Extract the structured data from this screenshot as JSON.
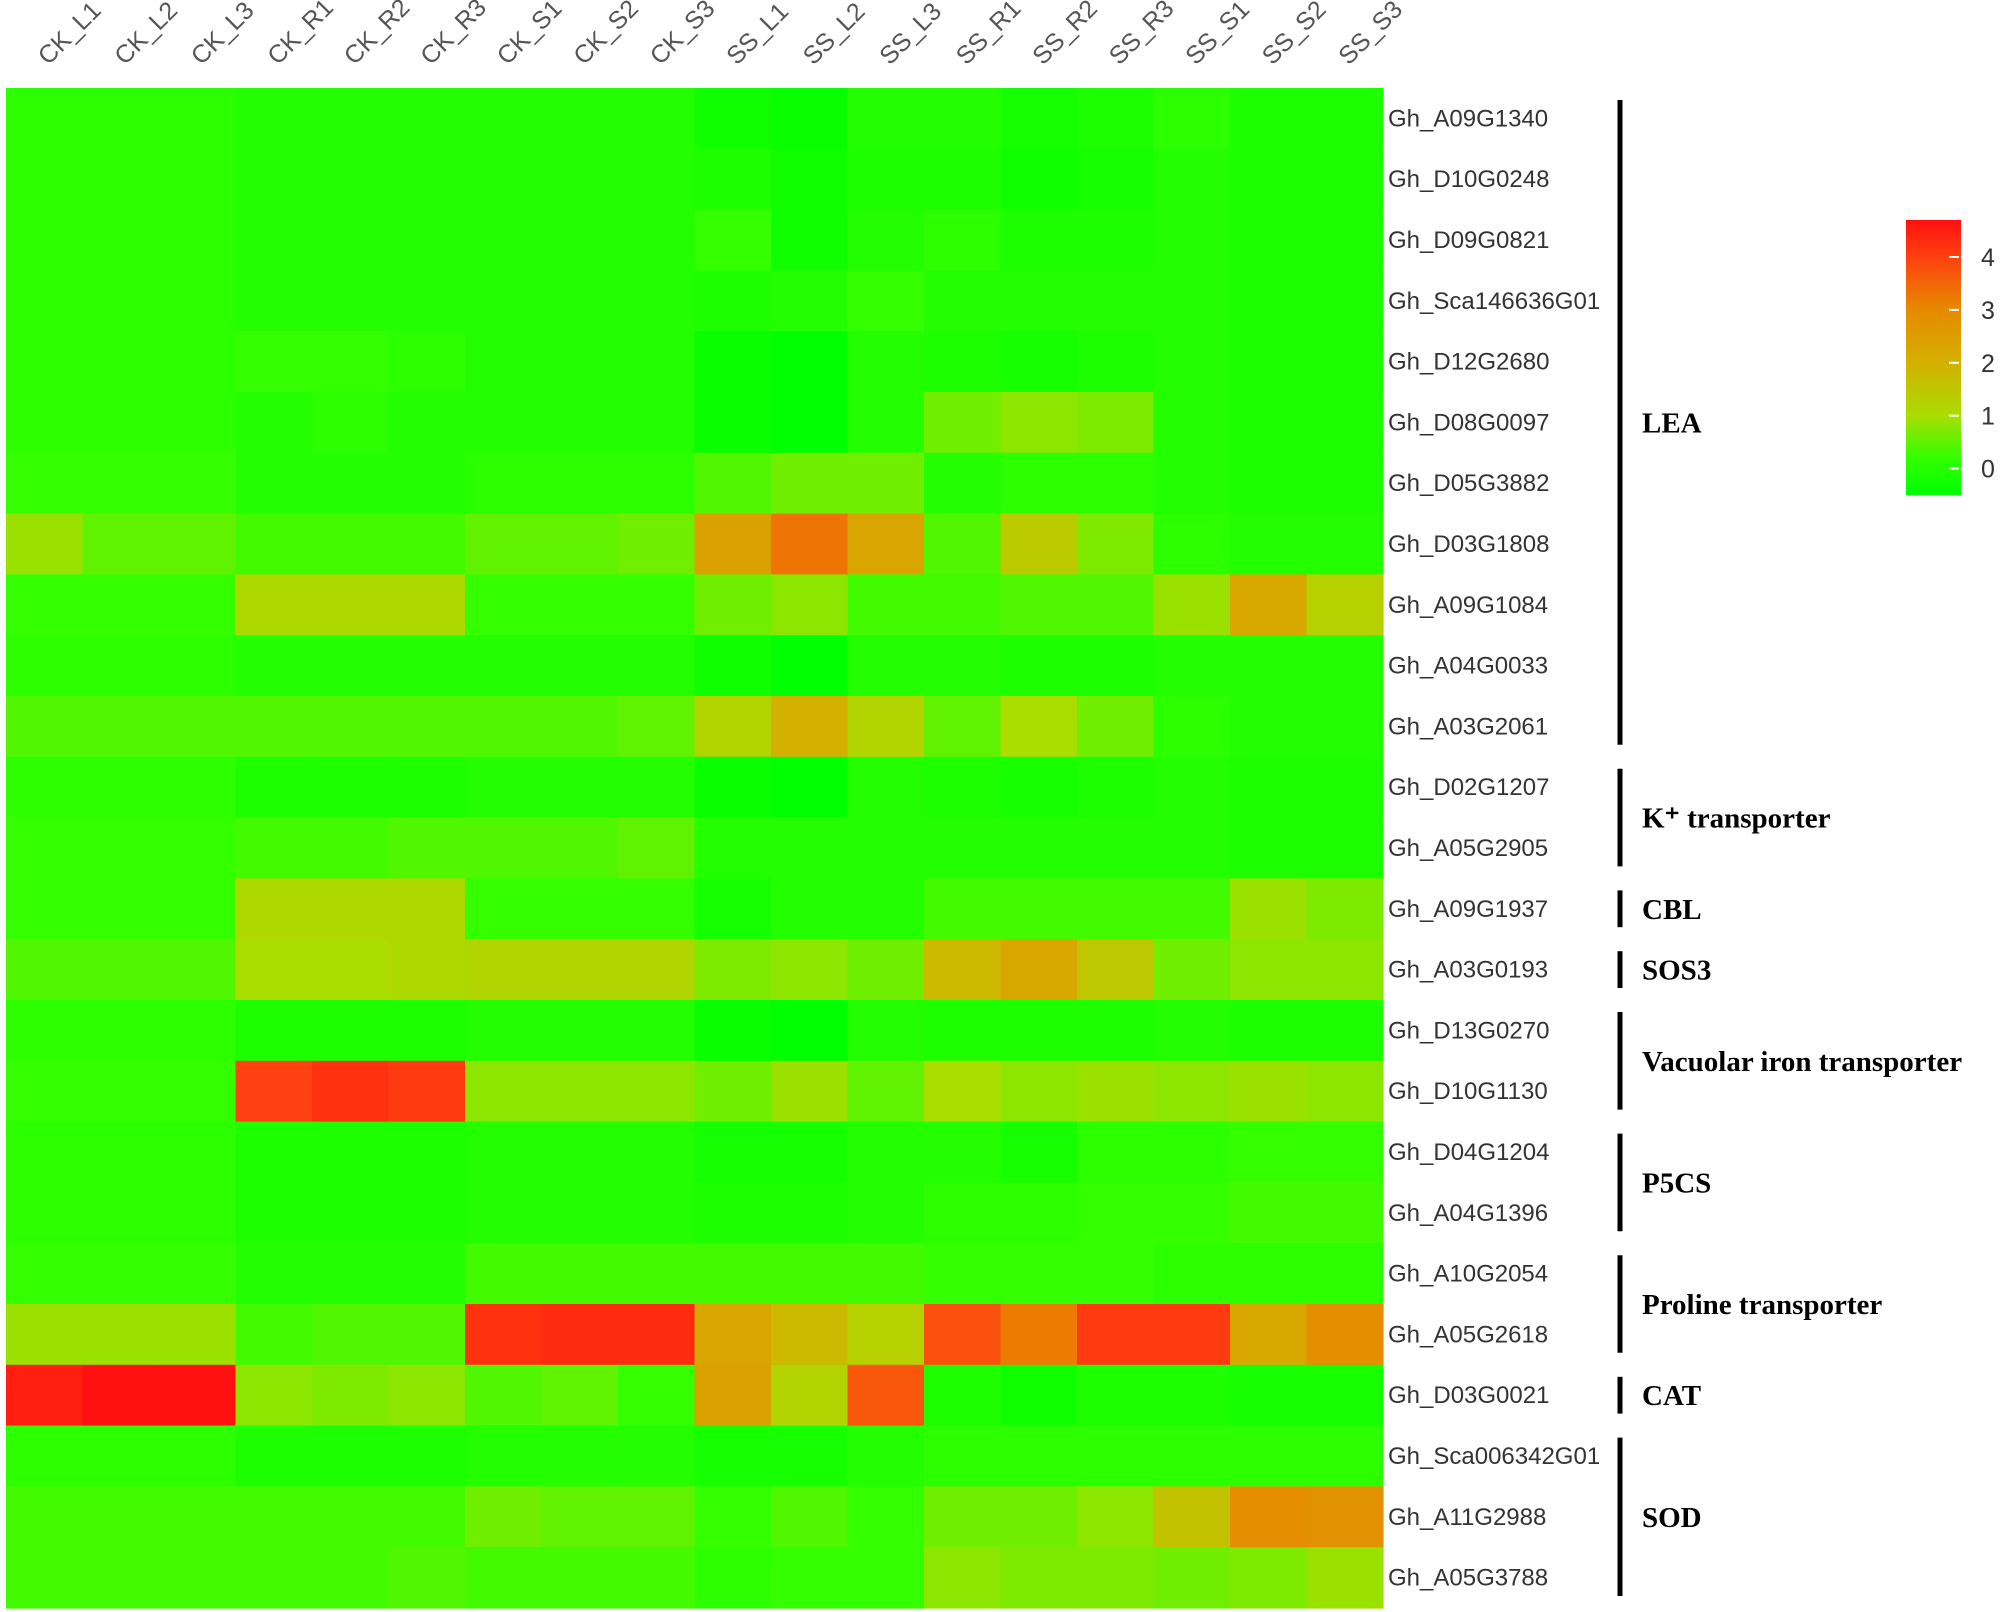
{
  "chart_data": {
    "type": "heatmap",
    "title": "",
    "columns": [
      "CK_L1",
      "CK_L2",
      "CK_L3",
      "CK_R1",
      "CK_R2",
      "CK_R3",
      "CK_S1",
      "CK_S2",
      "CK_S3",
      "SS_L1",
      "SS_L2",
      "SS_L3",
      "SS_R1",
      "SS_R2",
      "SS_R3",
      "SS_S1",
      "SS_S2",
      "SS_S3"
    ],
    "rows": [
      {
        "gene": "Gh_A09G1340",
        "values": [
          0.1,
          0.1,
          0.1,
          0.0,
          0.0,
          0.0,
          0.0,
          0.0,
          0.0,
          -0.3,
          -0.4,
          0.0,
          0.0,
          -0.2,
          -0.1,
          0.1,
          -0.1,
          -0.1
        ]
      },
      {
        "gene": "Gh_D10G0248",
        "values": [
          0.1,
          0.1,
          0.1,
          0.0,
          0.0,
          0.0,
          0.0,
          0.0,
          0.0,
          -0.1,
          -0.3,
          -0.1,
          -0.1,
          -0.3,
          -0.2,
          0.0,
          -0.1,
          -0.1
        ]
      },
      {
        "gene": "Gh_D09G0821",
        "values": [
          0.1,
          0.1,
          0.1,
          0.0,
          0.0,
          0.0,
          0.0,
          0.0,
          0.0,
          0.2,
          -0.3,
          0.0,
          0.1,
          -0.1,
          -0.1,
          0.0,
          -0.1,
          -0.1
        ]
      },
      {
        "gene": "Gh_Sca146636G01",
        "values": [
          0.1,
          0.1,
          0.1,
          0.0,
          0.0,
          0.0,
          0.0,
          0.0,
          0.0,
          -0.1,
          0.0,
          0.2,
          0.0,
          0.0,
          0.0,
          0.0,
          -0.1,
          -0.1
        ]
      },
      {
        "gene": "Gh_D12G2680",
        "values": [
          0.1,
          0.1,
          0.1,
          0.2,
          0.2,
          0.1,
          0.0,
          0.0,
          0.0,
          -0.4,
          -0.5,
          0.0,
          -0.1,
          -0.2,
          -0.1,
          0.0,
          -0.1,
          -0.1
        ]
      },
      {
        "gene": "Gh_D08G0097",
        "values": [
          0.1,
          0.1,
          0.1,
          0.0,
          0.1,
          0.0,
          0.0,
          0.0,
          0.0,
          -0.4,
          -0.5,
          0.0,
          0.6,
          0.8,
          0.7,
          0.0,
          -0.1,
          -0.1
        ]
      },
      {
        "gene": "Gh_D05G3882",
        "values": [
          0.2,
          0.2,
          0.2,
          0.0,
          0.0,
          0.0,
          0.1,
          0.1,
          0.1,
          0.4,
          0.6,
          0.6,
          0.0,
          0.1,
          0.1,
          0.0,
          -0.1,
          -0.1
        ]
      },
      {
        "gene": "Gh_D03G1808",
        "values": [
          0.9,
          0.5,
          0.5,
          0.3,
          0.3,
          0.3,
          0.5,
          0.5,
          0.6,
          2.4,
          3.3,
          2.3,
          0.4,
          1.4,
          0.7,
          0.1,
          0.0,
          0.0
        ]
      },
      {
        "gene": "Gh_A09G1084",
        "values": [
          0.2,
          0.2,
          0.2,
          1.1,
          1.1,
          1.1,
          0.2,
          0.2,
          0.2,
          0.6,
          0.8,
          0.3,
          0.3,
          0.4,
          0.4,
          0.9,
          2.2,
          1.3
        ]
      },
      {
        "gene": "Gh_A04G0033",
        "values": [
          0.1,
          0.1,
          0.1,
          0.0,
          0.0,
          0.0,
          0.0,
          0.0,
          0.0,
          -0.3,
          -0.5,
          0.0,
          0.0,
          -0.1,
          -0.1,
          0.0,
          0.0,
          0.0
        ]
      },
      {
        "gene": "Gh_A03G2061",
        "values": [
          0.4,
          0.4,
          0.4,
          0.4,
          0.4,
          0.4,
          0.4,
          0.4,
          0.5,
          1.2,
          2.0,
          1.2,
          0.5,
          1.0,
          0.6,
          0.1,
          0.0,
          0.0
        ]
      },
      {
        "gene": "Gh_D02G1207",
        "values": [
          0.1,
          0.1,
          0.1,
          -0.1,
          -0.1,
          -0.1,
          0.0,
          0.0,
          0.0,
          -0.4,
          -0.5,
          0.0,
          -0.1,
          -0.2,
          -0.1,
          0.0,
          -0.1,
          -0.1
        ]
      },
      {
        "gene": "Gh_A05G2905",
        "values": [
          0.2,
          0.2,
          0.2,
          0.3,
          0.3,
          0.4,
          0.4,
          0.4,
          0.5,
          0.0,
          0.0,
          0.0,
          0.0,
          0.0,
          0.0,
          0.0,
          -0.1,
          -0.1
        ]
      },
      {
        "gene": "Gh_A09G1937",
        "values": [
          0.2,
          0.2,
          0.2,
          1.1,
          1.1,
          1.1,
          0.2,
          0.2,
          0.2,
          -0.2,
          0.0,
          0.0,
          0.3,
          0.3,
          0.3,
          0.3,
          0.9,
          0.7
        ]
      },
      {
        "gene": "Gh_A03G0193",
        "values": [
          0.4,
          0.4,
          0.4,
          1.0,
          1.0,
          1.1,
          1.2,
          1.2,
          1.2,
          0.7,
          0.8,
          0.6,
          1.8,
          2.2,
          1.5,
          0.6,
          0.8,
          0.8
        ]
      },
      {
        "gene": "Gh_D13G0270",
        "values": [
          0.1,
          0.1,
          0.1,
          -0.1,
          -0.1,
          -0.1,
          0.0,
          0.0,
          0.0,
          -0.4,
          -0.5,
          0.0,
          -0.1,
          -0.1,
          -0.1,
          0.0,
          -0.1,
          -0.1
        ]
      },
      {
        "gene": "Gh_D10G1130",
        "values": [
          0.2,
          0.2,
          0.2,
          4.0,
          4.2,
          4.1,
          0.8,
          0.8,
          0.8,
          0.6,
          0.9,
          0.5,
          1.0,
          0.8,
          0.9,
          0.8,
          0.9,
          0.8
        ]
      },
      {
        "gene": "Gh_D04G1204",
        "values": [
          0.1,
          0.1,
          0.1,
          -0.1,
          -0.1,
          -0.1,
          0.0,
          0.0,
          0.0,
          -0.2,
          -0.2,
          0.0,
          0.0,
          -0.2,
          0.1,
          0.1,
          0.2,
          0.2
        ]
      },
      {
        "gene": "Gh_A04G1396",
        "values": [
          0.1,
          0.1,
          0.1,
          -0.1,
          -0.1,
          -0.1,
          0.0,
          0.0,
          0.0,
          -0.1,
          -0.1,
          0.0,
          0.1,
          0.1,
          0.2,
          0.2,
          0.3,
          0.3
        ]
      },
      {
        "gene": "Gh_A10G2054",
        "values": [
          0.2,
          0.2,
          0.2,
          0.0,
          0.0,
          0.0,
          0.3,
          0.3,
          0.3,
          0.3,
          0.3,
          0.3,
          0.2,
          0.2,
          0.2,
          0.1,
          0.1,
          0.1
        ]
      },
      {
        "gene": "Gh_A05G2618",
        "values": [
          0.9,
          0.9,
          0.9,
          0.3,
          0.4,
          0.4,
          4.2,
          4.3,
          4.3,
          2.3,
          1.8,
          1.3,
          3.8,
          3.2,
          4.1,
          4.1,
          2.2,
          2.9
        ]
      },
      {
        "gene": "Gh_D03G0021",
        "values": [
          4.5,
          4.7,
          4.7,
          0.8,
          0.7,
          0.8,
          0.4,
          0.5,
          0.2,
          2.4,
          1.2,
          3.7,
          -0.1,
          -0.3,
          -0.1,
          -0.1,
          -0.2,
          -0.2
        ]
      },
      {
        "gene": "Gh_Sca006342G01",
        "values": [
          0.1,
          0.1,
          0.1,
          -0.1,
          -0.1,
          -0.1,
          0.0,
          0.0,
          0.0,
          -0.2,
          -0.2,
          0.0,
          0.1,
          0.1,
          0.1,
          0.1,
          0.1,
          0.1
        ]
      },
      {
        "gene": "Gh_A11G2988",
        "values": [
          0.3,
          0.3,
          0.3,
          0.3,
          0.3,
          0.3,
          0.6,
          0.5,
          0.5,
          0.2,
          0.4,
          0.2,
          0.6,
          0.6,
          0.8,
          1.6,
          2.9,
          2.8
        ]
      },
      {
        "gene": "Gh_A05G3788",
        "values": [
          0.3,
          0.3,
          0.3,
          0.3,
          0.3,
          0.4,
          0.3,
          0.3,
          0.3,
          0.1,
          0.2,
          0.2,
          0.8,
          0.7,
          0.7,
          0.6,
          0.7,
          0.9
        ]
      }
    ],
    "groups": [
      {
        "label": "LEA",
        "start": 0,
        "end": 10
      },
      {
        "label": "K⁺ transporter",
        "start": 11,
        "end": 12
      },
      {
        "label": "CBL",
        "start": 13,
        "end": 13
      },
      {
        "label": "SOS3",
        "start": 14,
        "end": 14
      },
      {
        "label": "Vacuolar iron transporter",
        "start": 15,
        "end": 16
      },
      {
        "label": "P5CS",
        "start": 17,
        "end": 18
      },
      {
        "label": "Proline transporter",
        "start": 19,
        "end": 20
      },
      {
        "label": "CAT",
        "start": 21,
        "end": 21
      },
      {
        "label": "SOD",
        "start": 22,
        "end": 24
      }
    ],
    "color_scale": {
      "min": -0.5,
      "max": 4.7,
      "ticks": [
        0,
        1,
        2,
        3,
        4
      ],
      "stops": [
        {
          "value": -0.5,
          "color": "#00ff00"
        },
        {
          "value": 0.2,
          "color": "#33ff00"
        },
        {
          "value": 1.0,
          "color": "#aadd00"
        },
        {
          "value": 2.0,
          "color": "#d4b000"
        },
        {
          "value": 3.0,
          "color": "#e68a00"
        },
        {
          "value": 4.0,
          "color": "#ff4010"
        },
        {
          "value": 4.7,
          "color": "#ff1010"
        }
      ]
    },
    "grid": false,
    "legend_position": "right"
  }
}
